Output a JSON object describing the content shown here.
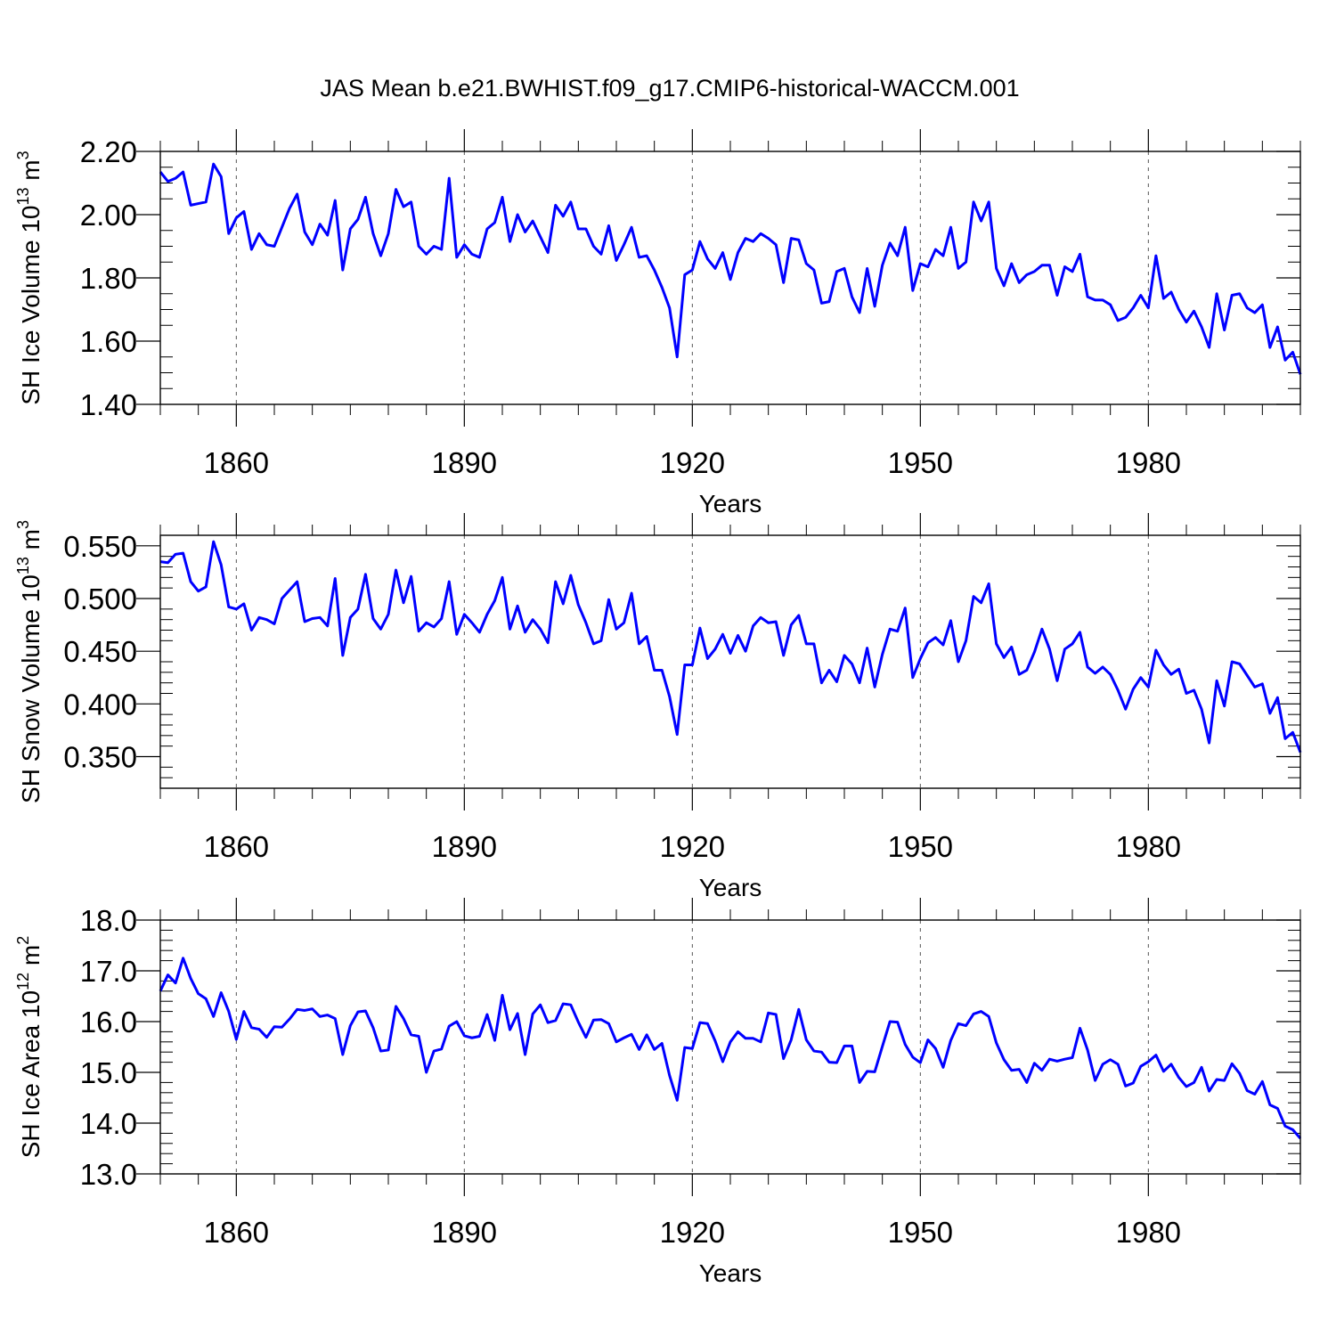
{
  "figure": {
    "title": "JAS Mean b.e21.BWHIST.f09_g17.CMIP6-historical-WACCM.001",
    "line_color": "#0000ff"
  },
  "chart_data": [
    {
      "type": "line",
      "ylabel": "SH Ice Volume",
      "ylabel_units": {
        "base": "10",
        "exp": "13",
        "unit": "m",
        "unit_exp": "3"
      },
      "xlabel": "Years",
      "xlim": [
        1850,
        2000
      ],
      "ylim": [
        1.4,
        2.2
      ],
      "x_ticks": [
        1860,
        1890,
        1920,
        1950,
        1980
      ],
      "x_tick_labels": [
        "1860",
        "1890",
        "1920",
        "1950",
        "1980"
      ],
      "y_ticks": [
        1.4,
        1.6,
        1.8,
        2.0,
        2.2
      ],
      "y_tick_labels": [
        "1.40",
        "1.60",
        "1.80",
        "2.00",
        "2.20"
      ],
      "y_minor_step": 0.05,
      "grid": "dashed vertical at major x ticks",
      "series": [
        {
          "x0": 1850,
          "values": [
            2.135,
            2.105,
            2.115,
            2.135,
            2.03,
            2.035,
            2.04,
            2.16,
            2.12,
            1.94,
            1.99,
            2.01,
            1.89,
            1.94,
            1.905,
            1.9,
            1.96,
            2.02,
            2.065,
            1.945,
            1.905,
            1.97,
            1.935,
            2.045,
            1.825,
            1.955,
            1.985,
            2.055,
            1.94,
            1.87,
            1.94,
            2.08,
            2.025,
            2.04,
            1.9,
            1.875,
            1.9,
            1.89,
            2.115,
            1.865,
            1.905,
            1.875,
            1.865,
            1.955,
            1.975,
            2.055,
            1.915,
            2.0,
            1.945,
            1.98,
            1.93,
            1.88,
            2.03,
            1.995,
            2.04,
            1.955,
            1.955,
            1.9,
            1.875,
            1.965,
            1.855,
            1.905,
            1.96,
            1.865,
            1.87,
            1.825,
            1.77,
            1.705,
            1.55,
            1.81,
            1.825,
            1.915,
            1.86,
            1.83,
            1.88,
            1.795,
            1.88,
            1.925,
            1.915,
            1.94,
            1.925,
            1.905,
            1.785,
            1.925,
            1.92,
            1.845,
            1.825,
            1.72,
            1.725,
            1.82,
            1.83,
            1.74,
            1.69,
            1.83,
            1.71,
            1.84,
            1.91,
            1.87,
            1.96,
            1.76,
            1.845,
            1.835,
            1.89,
            1.87,
            1.96,
            1.83,
            1.85,
            2.04,
            1.98,
            2.04,
            1.83,
            1.775,
            1.845,
            1.785,
            1.81,
            1.82,
            1.84,
            1.84,
            1.745,
            1.835,
            1.82,
            1.875,
            1.74,
            1.73,
            1.73,
            1.715,
            1.665,
            1.675,
            1.705,
            1.745,
            1.705,
            1.87,
            1.735,
            1.755,
            1.7,
            1.66,
            1.695,
            1.645,
            1.58,
            1.75,
            1.635,
            1.745,
            1.75,
            1.705,
            1.69,
            1.715,
            1.58,
            1.645,
            1.54,
            1.565,
            1.495
          ]
        }
      ]
    },
    {
      "type": "line",
      "ylabel": "SH Snow Volume",
      "ylabel_units": {
        "base": "10",
        "exp": "13",
        "unit": "m",
        "unit_exp": "3"
      },
      "xlabel": "Years",
      "xlim": [
        1850,
        2000
      ],
      "ylim": [
        0.32,
        0.56
      ],
      "x_ticks": [
        1860,
        1890,
        1920,
        1950,
        1980
      ],
      "x_tick_labels": [
        "1860",
        "1890",
        "1920",
        "1950",
        "1980"
      ],
      "y_ticks": [
        0.35,
        0.4,
        0.45,
        0.5,
        0.55
      ],
      "y_tick_labels": [
        "0.350",
        "0.400",
        "0.450",
        "0.500",
        "0.550"
      ],
      "y_minor_step": 0.01,
      "grid": "dashed vertical at major x ticks",
      "series": [
        {
          "x0": 1850,
          "values": [
            0.535,
            0.534,
            0.542,
            0.543,
            0.516,
            0.507,
            0.511,
            0.554,
            0.532,
            0.492,
            0.49,
            0.495,
            0.47,
            0.482,
            0.48,
            0.476,
            0.5,
            0.508,
            0.516,
            0.478,
            0.481,
            0.482,
            0.474,
            0.519,
            0.446,
            0.482,
            0.49,
            0.523,
            0.481,
            0.471,
            0.485,
            0.527,
            0.496,
            0.521,
            0.469,
            0.477,
            0.473,
            0.481,
            0.516,
            0.466,
            0.485,
            0.477,
            0.468,
            0.485,
            0.498,
            0.52,
            0.471,
            0.493,
            0.468,
            0.48,
            0.471,
            0.458,
            0.516,
            0.495,
            0.522,
            0.494,
            0.477,
            0.457,
            0.46,
            0.499,
            0.471,
            0.477,
            0.505,
            0.457,
            0.464,
            0.432,
            0.432,
            0.407,
            0.371,
            0.437,
            0.437,
            0.472,
            0.443,
            0.452,
            0.466,
            0.448,
            0.465,
            0.45,
            0.474,
            0.482,
            0.477,
            0.478,
            0.446,
            0.475,
            0.484,
            0.457,
            0.457,
            0.42,
            0.432,
            0.421,
            0.446,
            0.438,
            0.42,
            0.453,
            0.416,
            0.447,
            0.471,
            0.469,
            0.491,
            0.425,
            0.443,
            0.458,
            0.463,
            0.456,
            0.479,
            0.44,
            0.46,
            0.502,
            0.496,
            0.514,
            0.457,
            0.444,
            0.454,
            0.428,
            0.432,
            0.449,
            0.471,
            0.452,
            0.422,
            0.452,
            0.457,
            0.468,
            0.435,
            0.429,
            0.435,
            0.428,
            0.413,
            0.395,
            0.414,
            0.425,
            0.416,
            0.451,
            0.437,
            0.428,
            0.433,
            0.41,
            0.413,
            0.395,
            0.363,
            0.422,
            0.398,
            0.44,
            0.438,
            0.427,
            0.416,
            0.419,
            0.391,
            0.406,
            0.367,
            0.373,
            0.354
          ]
        }
      ]
    },
    {
      "type": "line",
      "ylabel": "SH Ice Area",
      "ylabel_units": {
        "base": "10",
        "exp": "12",
        "unit": "m",
        "unit_exp": "2"
      },
      "xlabel": "Years",
      "xlim": [
        1850,
        2000
      ],
      "ylim": [
        13.0,
        18.0
      ],
      "x_ticks": [
        1860,
        1890,
        1920,
        1950,
        1980
      ],
      "x_tick_labels": [
        "1860",
        "1890",
        "1920",
        "1950",
        "1980"
      ],
      "y_ticks": [
        13.0,
        14.0,
        15.0,
        16.0,
        17.0,
        18.0
      ],
      "y_tick_labels": [
        "13.0",
        "14.0",
        "15.0",
        "16.0",
        "17.0",
        "18.0"
      ],
      "y_minor_step": 0.2,
      "grid": "dashed vertical at major x ticks",
      "series": [
        {
          "x0": 1850,
          "values": [
            16.6,
            16.92,
            16.76,
            17.25,
            16.85,
            16.55,
            16.45,
            16.1,
            16.57,
            16.2,
            15.65,
            16.2,
            15.88,
            15.85,
            15.69,
            15.9,
            15.89,
            16.05,
            16.24,
            16.22,
            16.25,
            16.1,
            16.13,
            16.06,
            15.35,
            15.92,
            16.19,
            16.21,
            15.88,
            15.42,
            15.44,
            16.3,
            16.06,
            15.74,
            15.71,
            15.0,
            15.42,
            15.46,
            15.91,
            16.0,
            15.72,
            15.68,
            15.71,
            16.14,
            15.63,
            16.52,
            15.84,
            16.16,
            15.35,
            16.15,
            16.33,
            15.98,
            16.02,
            16.35,
            16.33,
            15.99,
            15.69,
            16.03,
            16.04,
            15.96,
            15.6,
            15.68,
            15.75,
            15.45,
            15.74,
            15.45,
            15.57,
            14.94,
            14.45,
            15.49,
            15.47,
            15.98,
            15.96,
            15.62,
            15.21,
            15.6,
            15.8,
            15.67,
            15.67,
            15.6,
            16.17,
            16.14,
            15.27,
            15.64,
            16.24,
            15.64,
            15.42,
            15.4,
            15.2,
            15.19,
            15.52,
            15.52,
            14.8,
            15.02,
            15.01,
            15.51,
            16.0,
            15.99,
            15.55,
            15.3,
            15.19,
            15.64,
            15.47,
            15.1,
            15.63,
            15.96,
            15.92,
            16.15,
            16.2,
            16.1,
            15.58,
            15.25,
            15.04,
            15.06,
            14.8,
            15.18,
            15.04,
            15.26,
            15.22,
            15.26,
            15.29,
            15.87,
            15.44,
            14.84,
            15.16,
            15.25,
            15.16,
            14.73,
            14.79,
            15.12,
            15.21,
            15.34,
            15.02,
            15.16,
            14.9,
            14.72,
            14.8,
            15.1,
            14.63,
            14.86,
            14.84,
            15.17,
            14.98,
            14.64,
            14.57,
            14.82,
            14.36,
            14.29,
            13.94,
            13.87,
            13.7
          ]
        }
      ]
    }
  ]
}
